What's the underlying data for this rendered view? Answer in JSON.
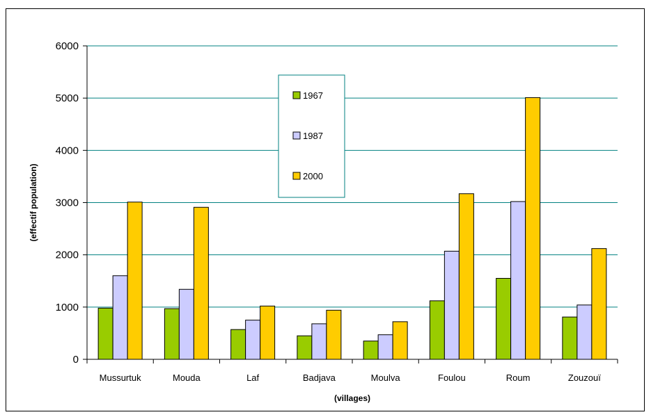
{
  "chart_data": {
    "type": "bar",
    "title": "",
    "xlabel": "(villages)",
    "ylabel": "(effectif population)",
    "ylim": [
      0,
      6000
    ],
    "yticks": [
      0,
      1000,
      2000,
      3000,
      4000,
      5000,
      6000
    ],
    "grid": true,
    "legend_position": "top-center",
    "categories": [
      "Mussurtuk",
      "Mouda",
      "Laf",
      "Badjava",
      "Moulva",
      "Foulou",
      "Roum",
      "Zouzouï"
    ],
    "series": [
      {
        "name": "1967",
        "color": "#99cc00",
        "values": [
          980,
          970,
          570,
          450,
          350,
          1120,
          1550,
          810
        ]
      },
      {
        "name": "1987",
        "color": "#ccccff",
        "values": [
          1600,
          1340,
          750,
          680,
          470,
          2070,
          3020,
          1040
        ]
      },
      {
        "name": "2000",
        "color": "#ffcc00",
        "values": [
          3010,
          2910,
          1020,
          940,
          720,
          3170,
          5010,
          2120
        ]
      }
    ],
    "colors": {
      "grid": "#008080",
      "axis": "#000000",
      "legend_border": "#008080"
    }
  }
}
